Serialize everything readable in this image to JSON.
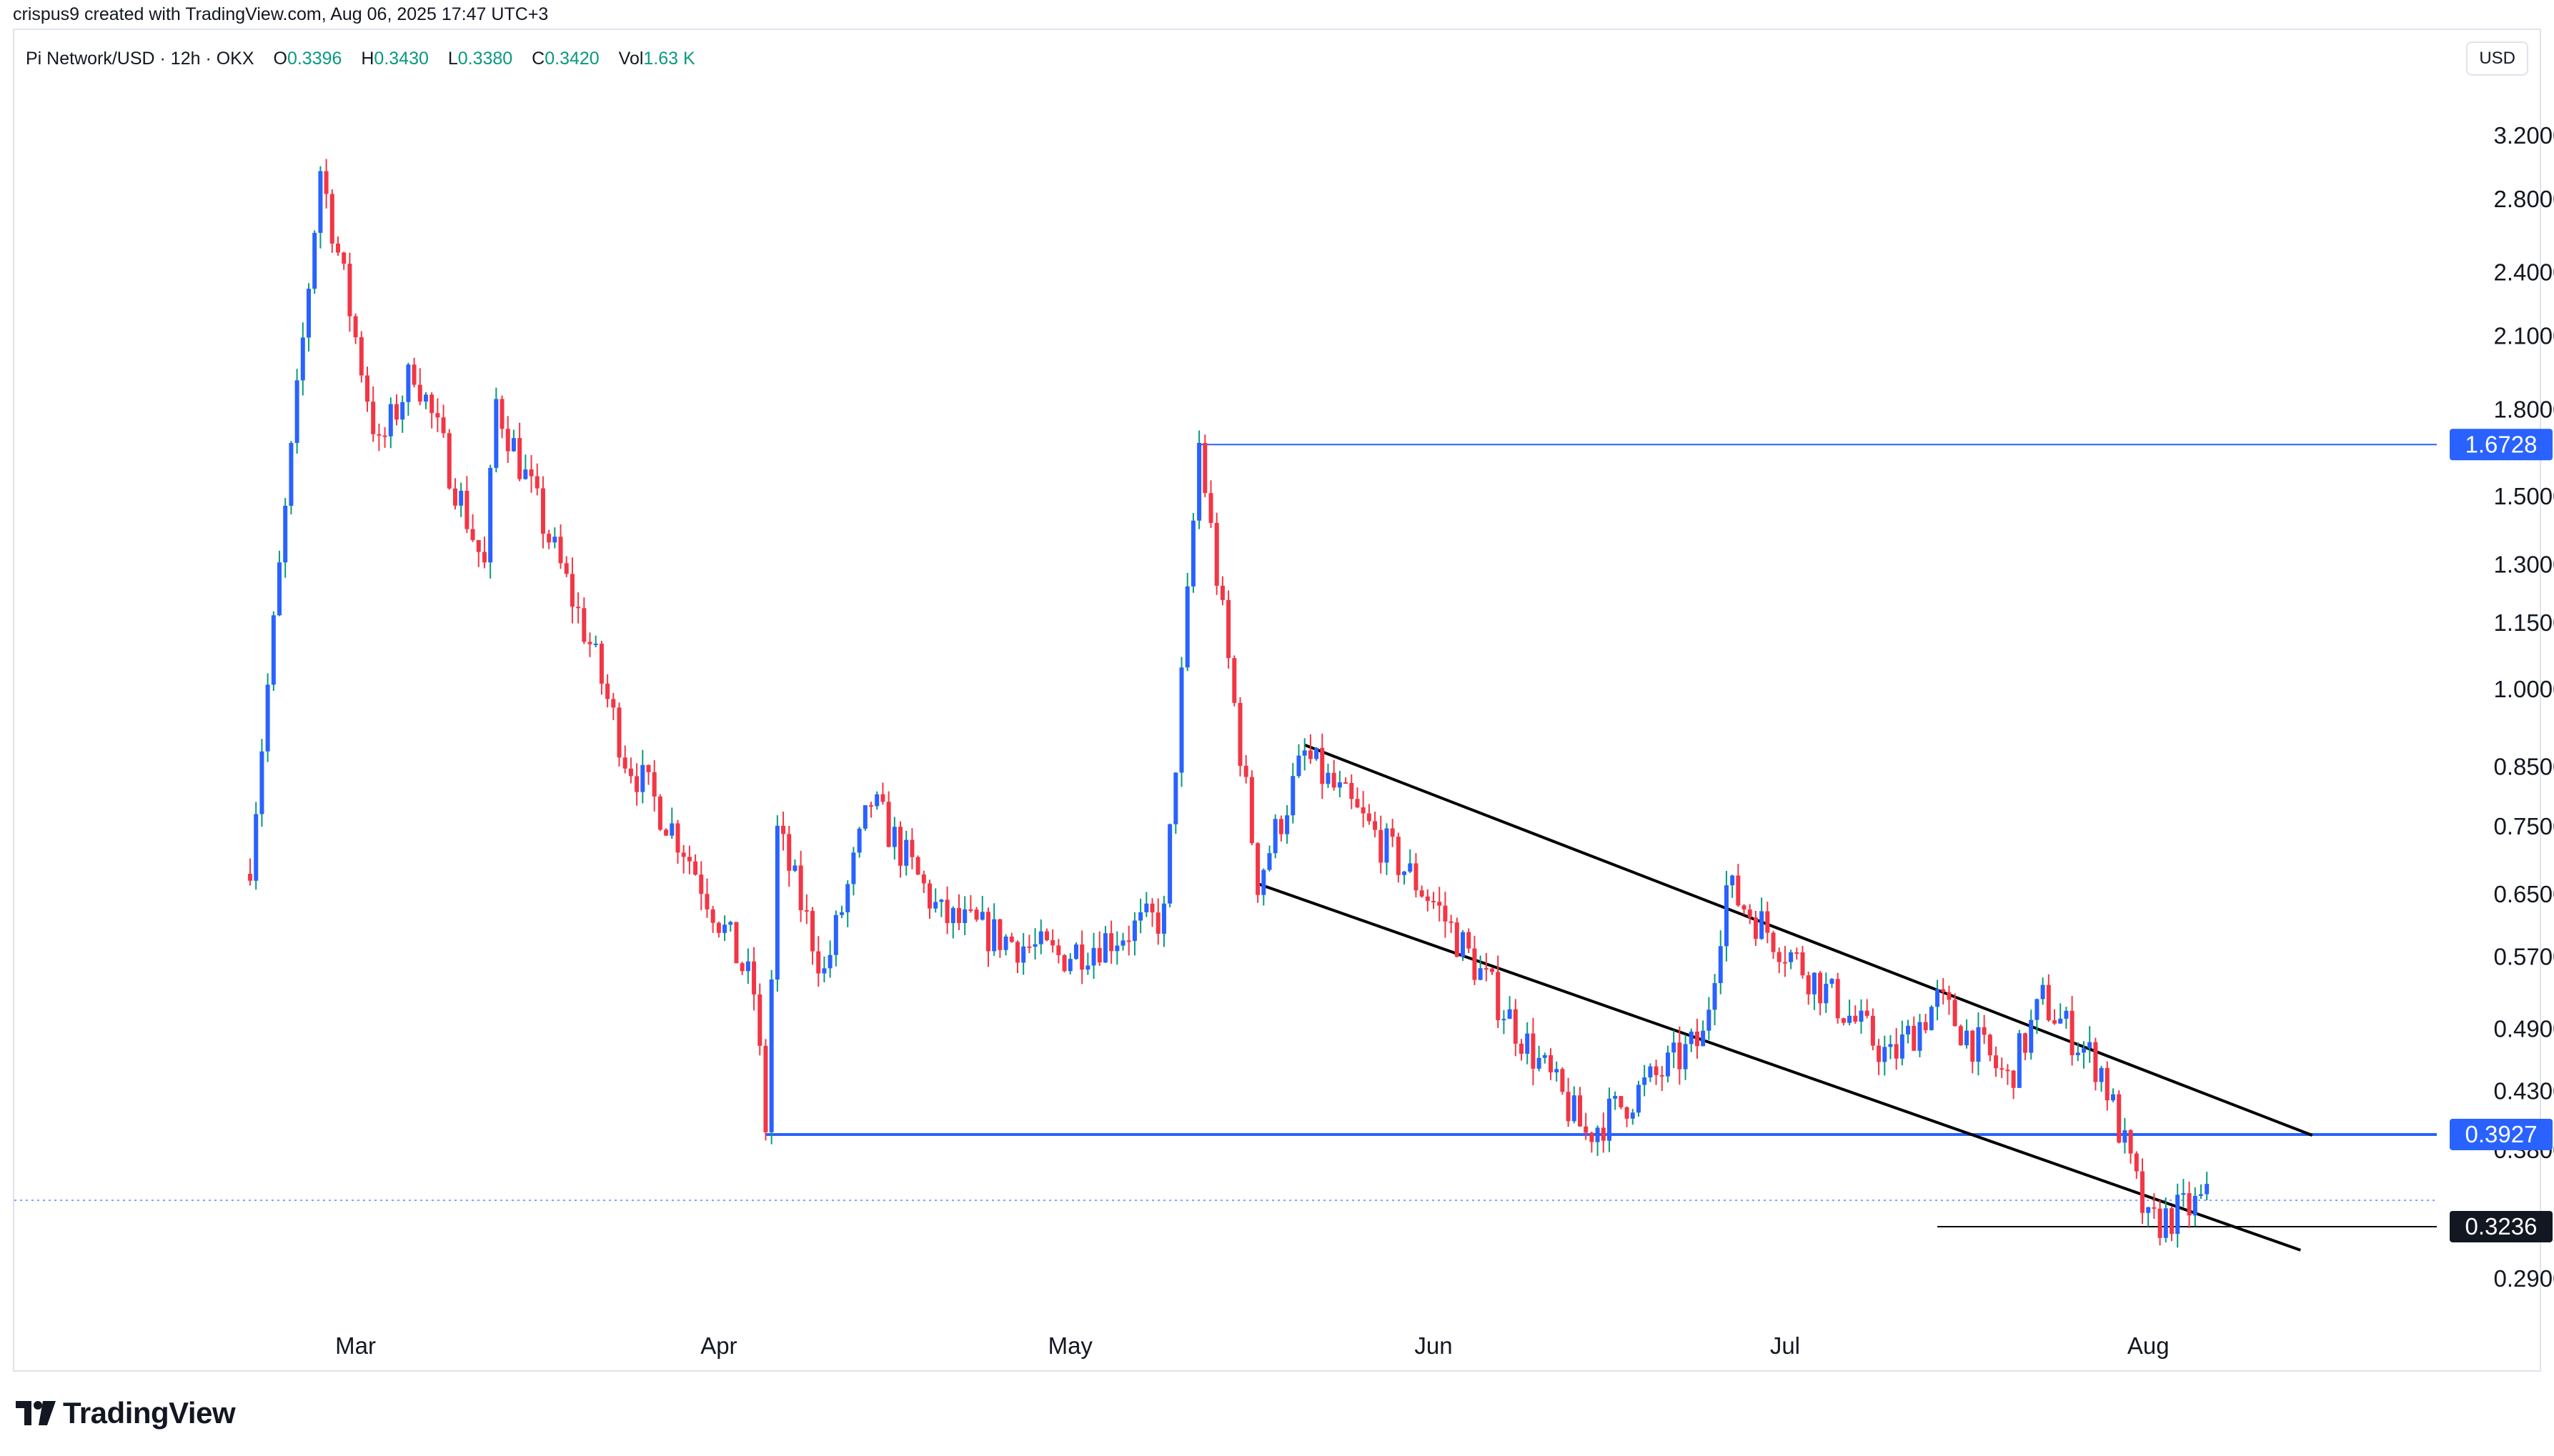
{
  "header": {
    "credit": "crispus9 created with TradingView.com, Aug 06, 2025 17:47 UTC+3",
    "symbol": "Pi Network/USD · 12h · OKX",
    "ohlc": {
      "o_label": "O",
      "o_value": "0.3396",
      "h_label": "H",
      "h_value": "0.3430",
      "l_label": "L",
      "l_value": "0.3380",
      "c_label": "C",
      "c_value": "0.3420",
      "vol_label": "Vol",
      "vol_value": "1.63 K"
    },
    "currency": "USD"
  },
  "brand": {
    "name": "TradingView"
  },
  "colors": {
    "up": "#2962ff",
    "down": "#f23645",
    "wick_up": "#089981",
    "level": "#2962ff",
    "channel": "#000000"
  },
  "chart_data": {
    "type": "candlestick",
    "scale": "log",
    "x_ticks": [
      "Mar",
      "Apr",
      "May",
      "Jun",
      "Jul",
      "Aug"
    ],
    "y_ticks": [
      "3.2000",
      "2.8000",
      "2.4000",
      "2.1000",
      "1.8000",
      "1.5000",
      "1.3000",
      "1.1500",
      "1.0000",
      "0.8500",
      "0.7500",
      "0.6500",
      "0.5700",
      "0.4900",
      "0.4300",
      "0.3800",
      "0.2900"
    ],
    "y_tick_values": [
      3.2,
      2.8,
      2.4,
      2.1,
      1.8,
      1.5,
      1.3,
      1.15,
      1.0,
      0.85,
      0.75,
      0.65,
      0.57,
      0.49,
      0.43,
      0.38,
      0.29
    ],
    "levels": [
      {
        "value": 1.6728,
        "label": "1.6728",
        "style": "thin-blue"
      },
      {
        "value": 0.3927,
        "label": "0.3927",
        "style": "thick-blue"
      },
      {
        "value": 0.3236,
        "label": "0.3236",
        "style": "black"
      }
    ],
    "last_price": 0.342,
    "events": [
      {
        "date": "Feb 20",
        "value": 0.7
      },
      {
        "date": "Feb 26",
        "value": 2.99
      },
      {
        "date": "Mar 3",
        "value": 1.65
      },
      {
        "date": "Mar 6",
        "value": 1.97
      },
      {
        "date": "Mar 12",
        "value": 1.29
      },
      {
        "date": "Mar 13",
        "value": 1.83
      },
      {
        "date": "Mar 21",
        "value": 1.1
      },
      {
        "date": "Mar 24",
        "value": 0.87
      },
      {
        "date": "Mar 29",
        "value": 0.72
      },
      {
        "date": "Apr 4",
        "value": 0.53
      },
      {
        "date": "Apr 5",
        "value": 0.4
      },
      {
        "date": "Apr 6",
        "value": 0.74
      },
      {
        "date": "Apr 10",
        "value": 0.55
      },
      {
        "date": "Apr 14",
        "value": 0.79
      },
      {
        "date": "Apr 20",
        "value": 0.62
      },
      {
        "date": "Apr 30",
        "value": 0.57
      },
      {
        "date": "May 9",
        "value": 0.62
      },
      {
        "date": "May 12",
        "value": 1.6728
      },
      {
        "date": "May 17",
        "value": 0.67
      },
      {
        "date": "May 21",
        "value": 0.87
      },
      {
        "date": "Jun 1",
        "value": 0.64
      },
      {
        "date": "Jun 14",
        "value": 0.3927
      },
      {
        "date": "Jun 24",
        "value": 0.48
      },
      {
        "date": "Jun 26",
        "value": 0.66
      },
      {
        "date": "Jul 10",
        "value": 0.46
      },
      {
        "date": "Jul 14",
        "value": 0.52
      },
      {
        "date": "Jul 20",
        "value": 0.44
      },
      {
        "date": "Jul 23",
        "value": 0.52
      },
      {
        "date": "Jul 28",
        "value": 0.45
      },
      {
        "date": "Aug 1",
        "value": 0.3236
      },
      {
        "date": "Aug 6",
        "value": 0.342
      }
    ],
    "channel": {
      "upper": [
        {
          "date": "May 21",
          "value": 0.89
        },
        {
          "date": "Aug 15",
          "value": 0.392
        }
      ],
      "lower": [
        {
          "date": "May 17",
          "value": 0.665
        },
        {
          "date": "Aug 14",
          "value": 0.308
        }
      ]
    },
    "grid": false,
    "legend": "top-left"
  }
}
